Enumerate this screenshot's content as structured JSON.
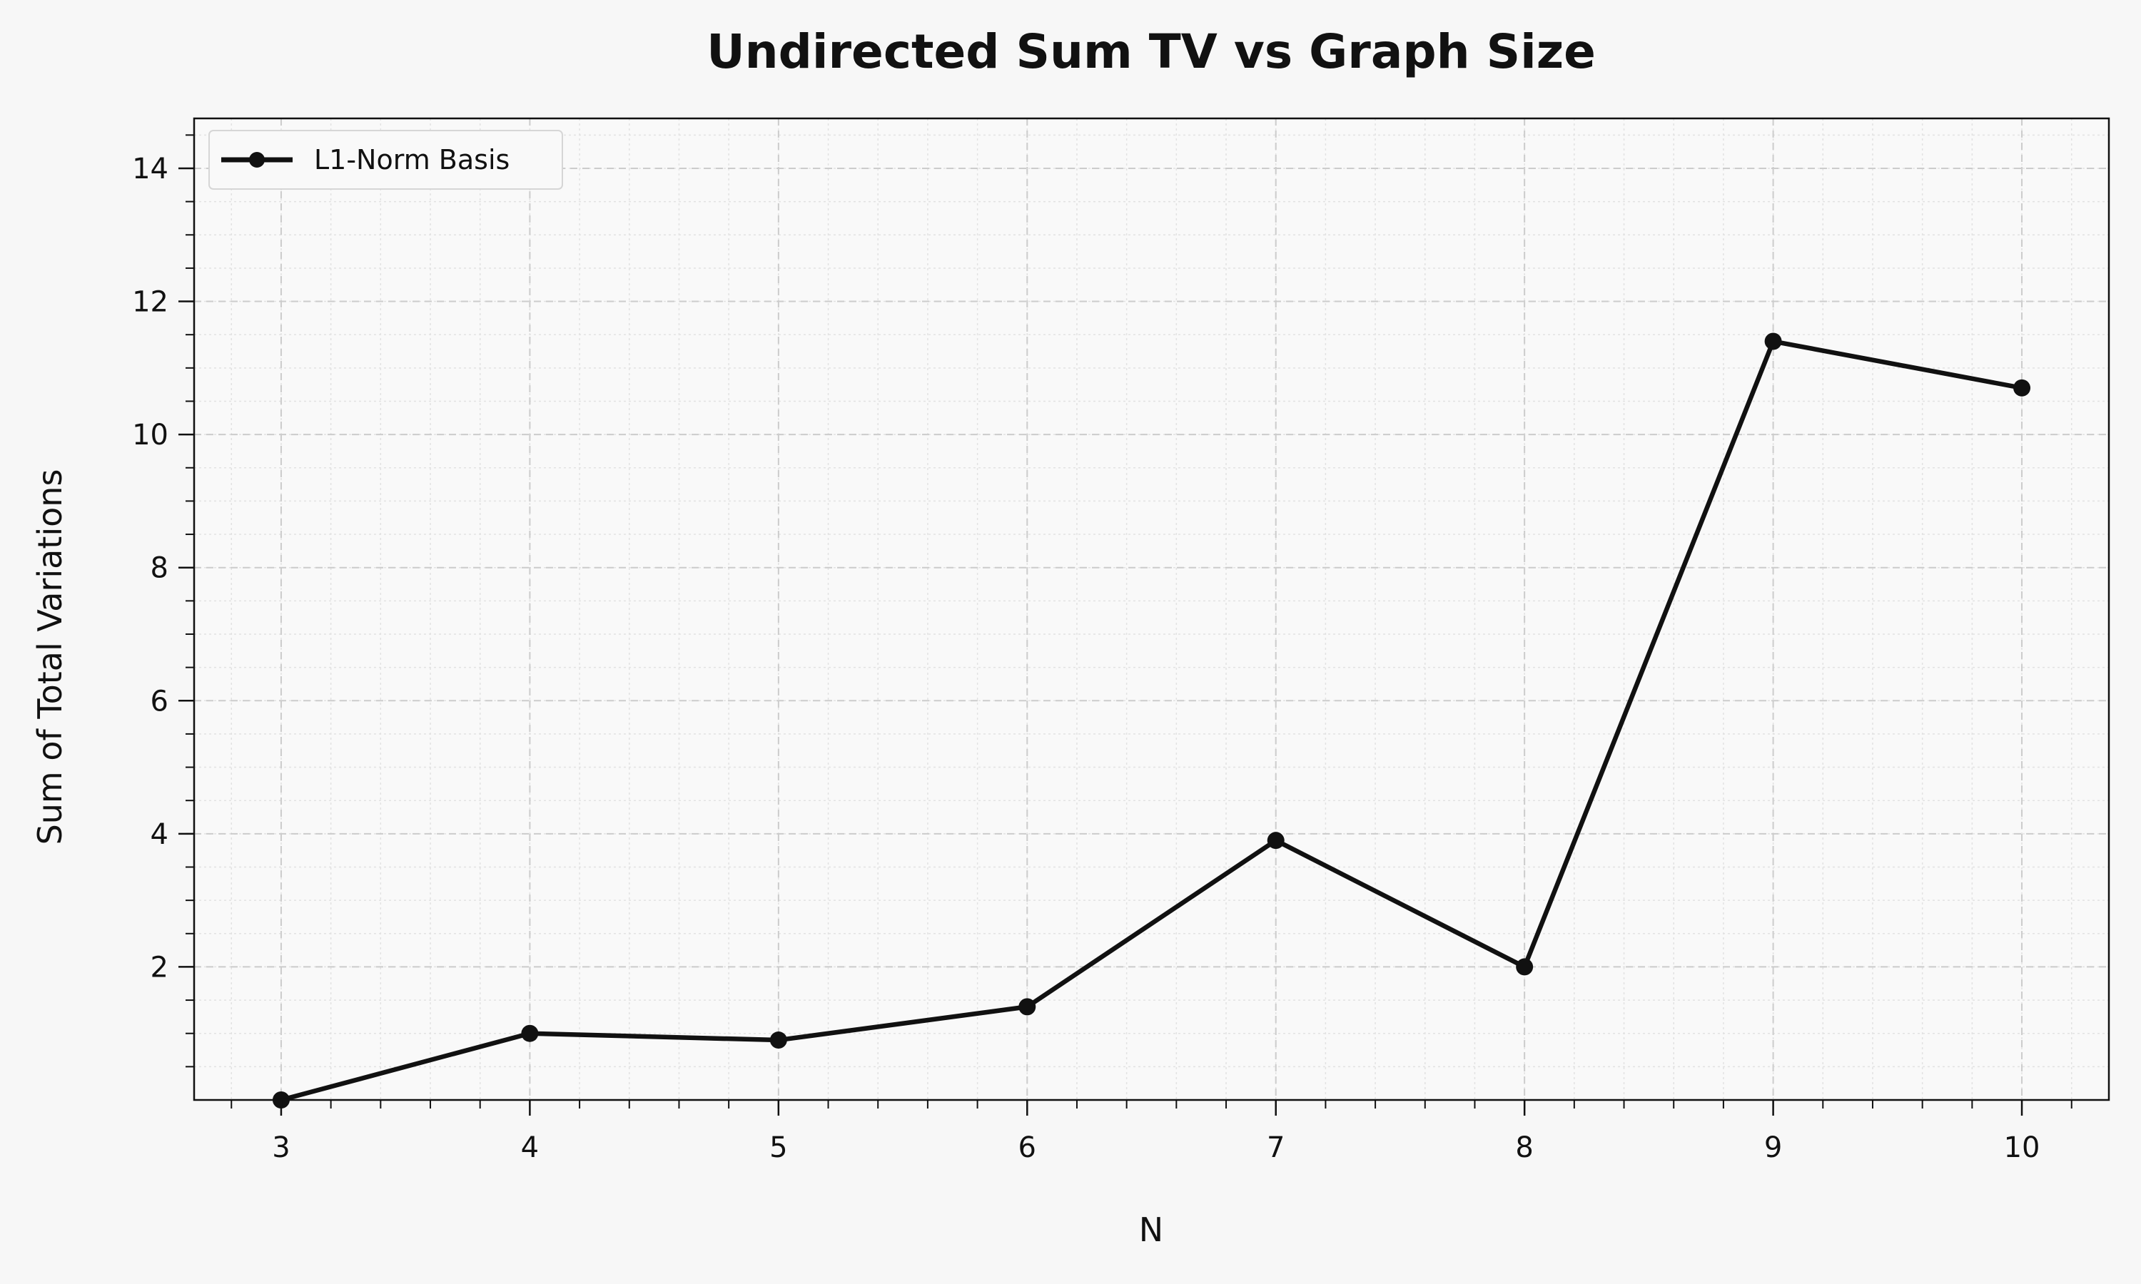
{
  "chart_data": {
    "type": "line",
    "title": "Undirected Sum TV vs Graph Size",
    "xlabel": "N",
    "ylabel": "Sum of Total Variations",
    "x": [
      3,
      4,
      5,
      6,
      7,
      8,
      9,
      10
    ],
    "series": [
      {
        "name": "L1-Norm Basis",
        "values": [
          0.0,
          1.0,
          0.9,
          1.4,
          3.9,
          2.0,
          11.4,
          10.7
        ],
        "color": "#111111",
        "marker": "circle"
      }
    ],
    "xlim": [
      2.65,
      10.35
    ],
    "ylim": [
      0.0,
      14.75
    ],
    "xticks": [
      3,
      4,
      5,
      6,
      7,
      8,
      9,
      10
    ],
    "yticks": [
      2,
      4,
      6,
      8,
      10,
      12,
      14
    ],
    "grid": true,
    "minor_grid": true,
    "legend_position": "top-left",
    "colors": {
      "background": "#f7f7f7",
      "plot_background": "#f9f9f9",
      "grid_major": "#cccccc",
      "grid_minor": "#e2e2e2",
      "line": "#111111"
    }
  }
}
